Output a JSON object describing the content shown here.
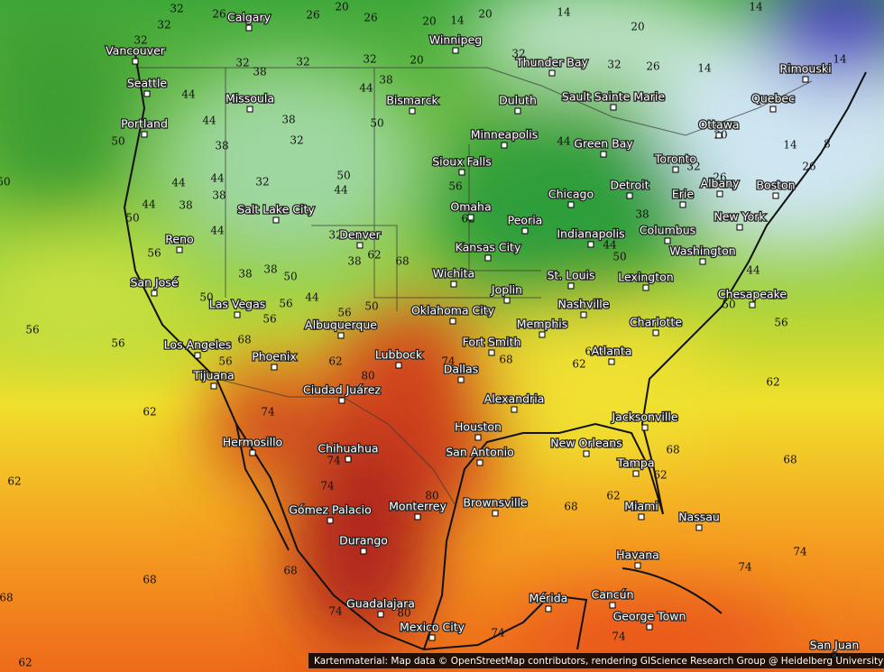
{
  "cities": [
    "Calgary",
    "Vancouver",
    "Winnipeg",
    "Thunder Bay",
    "Seattle",
    "Missoula",
    "Bismarck",
    "Duluth",
    "Sault Sainte Marie",
    "Rimouski",
    "Quebec",
    "Portland",
    "Ottawa",
    "Minneapolis",
    "Green Bay",
    "Toronto",
    "Sioux Falls",
    "Detroit",
    "Albany",
    "Boston",
    "Chicago",
    "Erie",
    "Salt Lake City",
    "Omaha",
    "New York",
    "Peoria",
    "Indianapolis",
    "Columbus",
    "Reno",
    "Denver",
    "Kansas City",
    "Washington",
    "Wichita",
    "St. Louis",
    "Lexington",
    "San José",
    "Joplin",
    "Las Vegas",
    "Oklahoma City",
    "Nashville",
    "Chesapeake",
    "Albuquerque",
    "Memphis",
    "Charlotte",
    "Los Angeles",
    "Fort Smith",
    "Atlanta",
    "Phoenix",
    "Lubbock",
    "Dallas",
    "Tijuana",
    "Ciudad Juárez",
    "Alexandria",
    "Jacksonville",
    "Houston",
    "San Antonio",
    "New Orleans",
    "Hermosillo",
    "Chihuahua",
    "Tampa",
    "Brownsville",
    "Monterrey",
    "Miami",
    "Nassau",
    "Gómez Palacio",
    "Durango",
    "Havana",
    "Mérida",
    "Cancún",
    "Guadalajara",
    "George Town",
    "Mexico City",
    "San Juan"
  ],
  "contour_labels": [
    32,
    26,
    26,
    20,
    26,
    20,
    14,
    20,
    14,
    20,
    14,
    32,
    32,
    32,
    38,
    32,
    32,
    20,
    32,
    32,
    26,
    14,
    14,
    44,
    38,
    44,
    38,
    50,
    44,
    50,
    32,
    38,
    44,
    20,
    14,
    8,
    26,
    32,
    26,
    44,
    38,
    44,
    38,
    32,
    50,
    44,
    56,
    50,
    44,
    50,
    44,
    62,
    38,
    32,
    62,
    38,
    68,
    56,
    38,
    38,
    50,
    44,
    50,
    56,
    50,
    56,
    56,
    68,
    56,
    56,
    56,
    44,
    50,
    50,
    44,
    62,
    62,
    68,
    74,
    80,
    62,
    56,
    74,
    62,
    62,
    74,
    74,
    80,
    68,
    62,
    68,
    62,
    68,
    62,
    68,
    68,
    74,
    74,
    74,
    74,
    74,
    68,
    62,
    80
  ],
  "attribution": "Kartenmaterial: Map data © OpenStreetMap contributors, rendering GIScience Research Group @ Heidelberg University"
}
